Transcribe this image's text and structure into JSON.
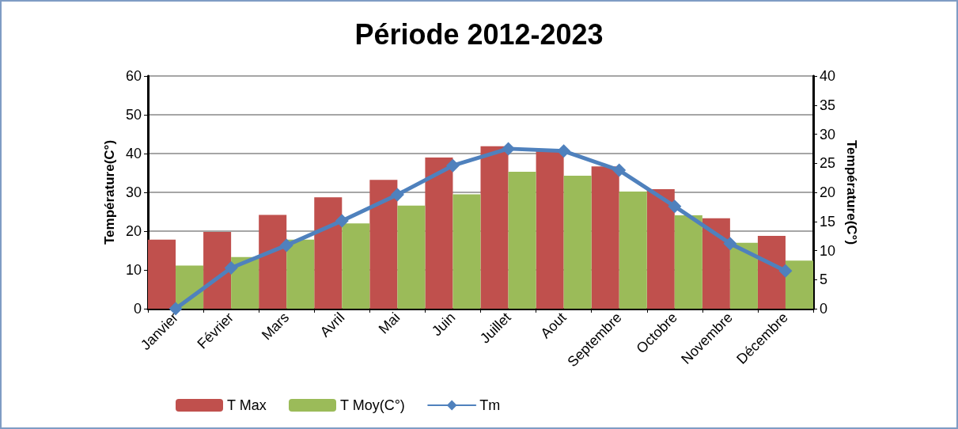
{
  "chart_data": {
    "type": "bar",
    "title": "Période 2012-2023",
    "ylabel": "Température(C°)",
    "y2label": "Température(C°)",
    "categories": [
      "Janvier",
      "Février",
      "Mars",
      "Avril",
      "Mai",
      "Juin",
      "Juillet",
      "Aout",
      "Septembre",
      "Octobre",
      "Novembre",
      "Décembre"
    ],
    "series": [
      {
        "name": "T Max",
        "color": "#c0504d",
        "values": [
          17.8,
          19.8,
          24.2,
          28.7,
          33.2,
          39,
          41.9,
          40.8,
          36.7,
          30.8,
          23.3,
          18.8
        ]
      },
      {
        "name": "T Moy(C°)",
        "color": "#9bbb59",
        "values": [
          11.1,
          13.3,
          17.8,
          22,
          26.6,
          29.5,
          35.3,
          34.3,
          30.2,
          24.1,
          17,
          12.4
        ]
      },
      {
        "name": "Tm",
        "type": "line",
        "axis": "y2",
        "color": "#4f81bd",
        "values": [
          0,
          7,
          10.9,
          15.1,
          19.6,
          24.6,
          27.5,
          27.1,
          23.8,
          17.6,
          11.2,
          6.5
        ]
      }
    ],
    "ylim": [
      0,
      60
    ],
    "yticks": [
      0,
      10,
      20,
      30,
      40,
      50,
      60
    ],
    "y2lim": [
      0,
      40
    ],
    "y2ticks": [
      0,
      5,
      10,
      15,
      20,
      25,
      30,
      35,
      40
    ],
    "grid": "y",
    "legend": "bottom",
    "marker": "diamond",
    "line_style": "solid"
  }
}
